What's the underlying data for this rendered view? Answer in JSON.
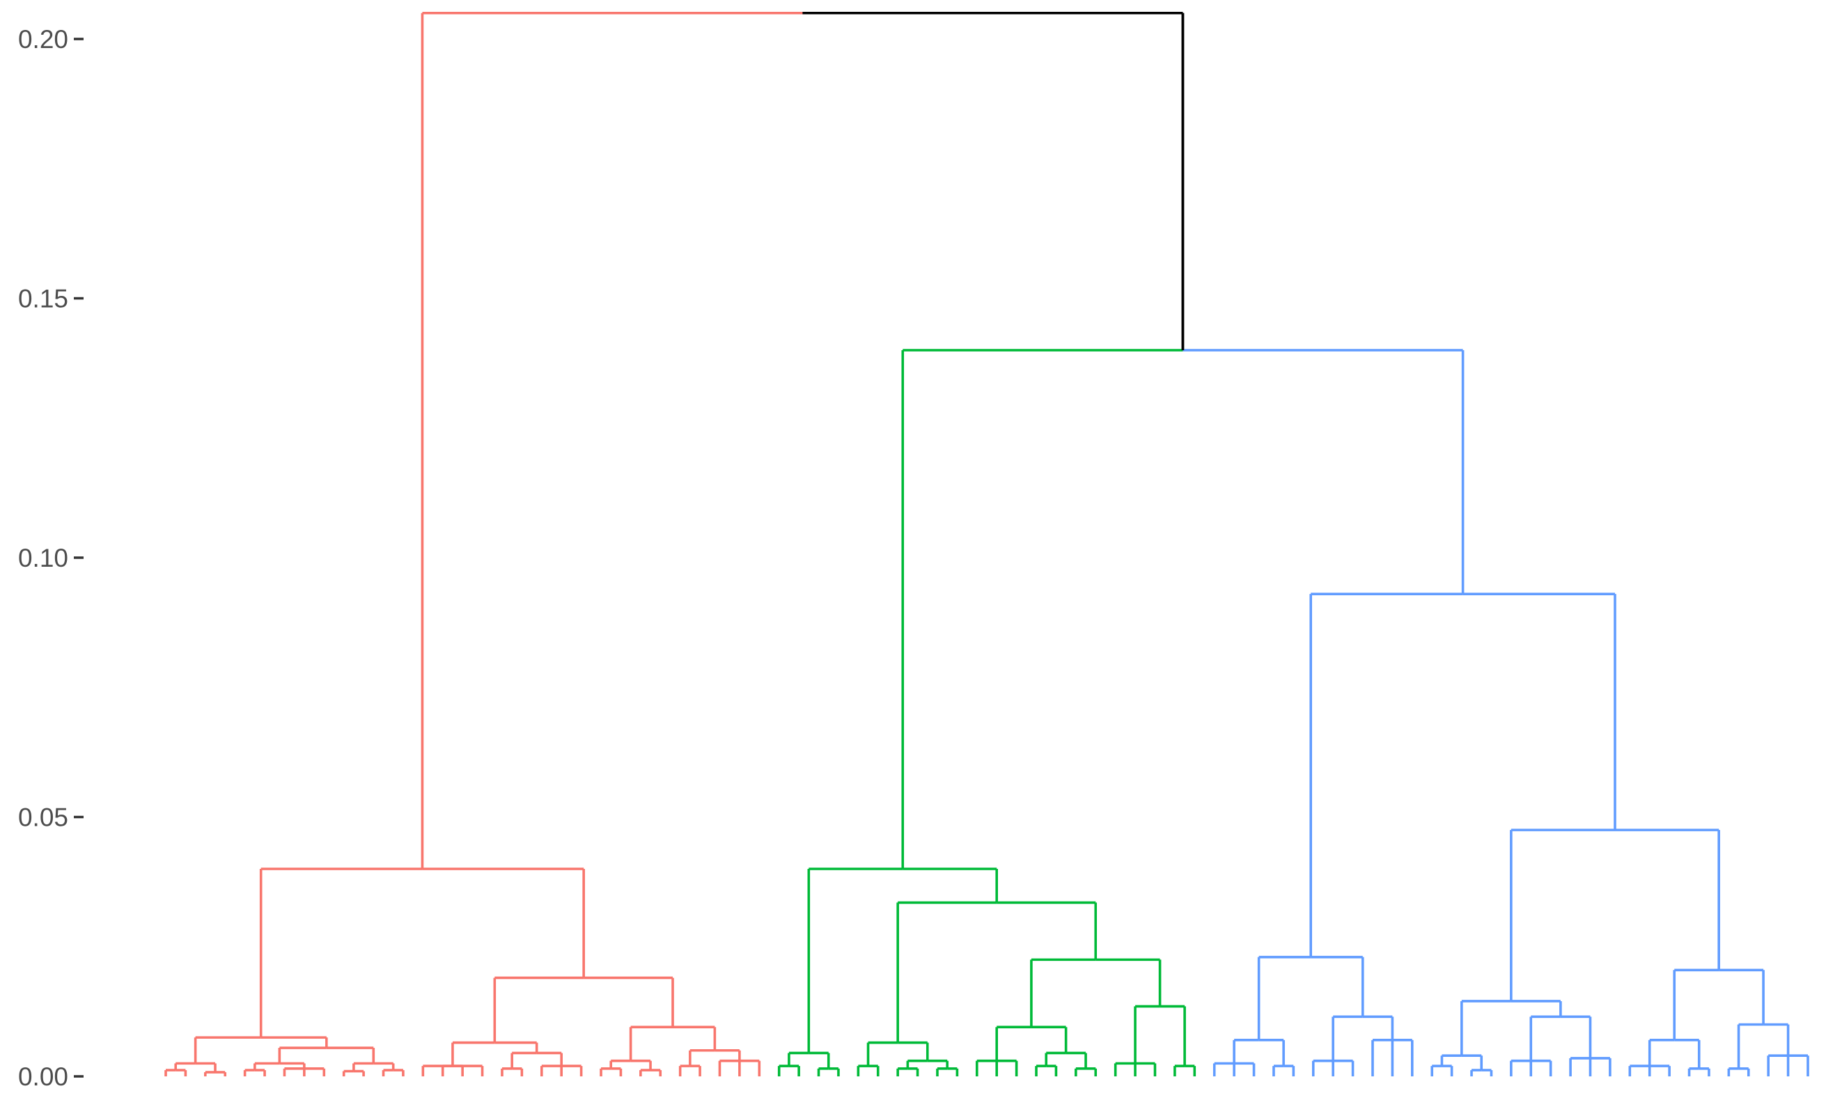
{
  "chart_data": {
    "type": "dendrogram",
    "title": "",
    "xlabel": "",
    "ylabel": "",
    "ylim": [
      0,
      0.205
    ],
    "y_ticks": [
      0.0,
      0.05,
      0.1,
      0.15,
      0.2
    ],
    "y_tick_labels": [
      "0.00",
      "0.05",
      "0.10",
      "0.15",
      "0.20"
    ],
    "grid": false,
    "leaf_labels_shown": false,
    "colors": {
      "root": "#000000",
      "clusters": [
        "#F8766D",
        "#00BA38",
        "#619CFF"
      ]
    },
    "merge_heights": {
      "root": 0.205,
      "green_blue": 0.14,
      "red_cluster": 0.04,
      "green_cluster": 0.04,
      "blue_cluster": 0.093
    },
    "tree": {
      "h": 0.205,
      "children": [
        {
          "cluster": 0,
          "h": 0.04,
          "children": [
            {
              "h": 0.0075,
              "children": [
                {
                  "h": 0.0025,
                  "children": [
                    {
                      "h": 0.0012,
                      "children": [
                        {},
                        {}
                      ]
                    },
                    {
                      "h": 0.0008,
                      "children": [
                        {},
                        {}
                      ]
                    }
                  ]
                },
                {
                  "h": 0.0055,
                  "children": [
                    {
                      "h": 0.0025,
                      "children": [
                        {
                          "h": 0.0012,
                          "children": [
                            {},
                            {}
                          ]
                        },
                        {
                          "h": 0.0015,
                          "children": [
                            {},
                            {},
                            {}
                          ]
                        }
                      ]
                    },
                    {
                      "h": 0.0025,
                      "children": [
                        {
                          "h": 0.001,
                          "children": [
                            {},
                            {}
                          ]
                        },
                        {
                          "h": 0.0012,
                          "children": [
                            {},
                            {}
                          ]
                        }
                      ]
                    }
                  ]
                }
              ]
            },
            {
              "h": 0.019,
              "children": [
                {
                  "h": 0.0065,
                  "children": [
                    {
                      "h": 0.002,
                      "children": [
                        {},
                        {},
                        {},
                        {}
                      ]
                    },
                    {
                      "h": 0.0045,
                      "children": [
                        {
                          "h": 0.0015,
                          "children": [
                            {},
                            {}
                          ]
                        },
                        {
                          "h": 0.002,
                          "children": [
                            {},
                            {},
                            {}
                          ]
                        }
                      ]
                    }
                  ]
                },
                {
                  "h": 0.0095,
                  "children": [
                    {
                      "h": 0.003,
                      "children": [
                        {
                          "h": 0.0015,
                          "children": [
                            {},
                            {}
                          ]
                        },
                        {
                          "h": 0.0012,
                          "children": [
                            {},
                            {}
                          ]
                        }
                      ]
                    },
                    {
                      "h": 0.005,
                      "children": [
                        {
                          "h": 0.002,
                          "children": [
                            {},
                            {}
                          ]
                        },
                        {
                          "h": 0.003,
                          "children": [
                            {},
                            {},
                            {}
                          ]
                        }
                      ]
                    }
                  ]
                }
              ]
            }
          ]
        },
        {
          "h": 0.14,
          "children": [
            {
              "cluster": 1,
              "h": 0.04,
              "children": [
                {
                  "h": 0.0045,
                  "children": [
                    {
                      "h": 0.002,
                      "children": [
                        {},
                        {}
                      ]
                    },
                    {
                      "h": 0.0015,
                      "children": [
                        {},
                        {}
                      ]
                    }
                  ]
                },
                {
                  "h": 0.0335,
                  "children": [
                    {
                      "h": 0.0065,
                      "children": [
                        {
                          "h": 0.002,
                          "children": [
                            {},
                            {}
                          ]
                        },
                        {
                          "h": 0.003,
                          "children": [
                            {
                              "h": 0.0015,
                              "children": [
                                {},
                                {}
                              ]
                            },
                            {
                              "h": 0.0015,
                              "children": [
                                {},
                                {}
                              ]
                            }
                          ]
                        }
                      ]
                    },
                    {
                      "h": 0.0225,
                      "children": [
                        {
                          "h": 0.0095,
                          "children": [
                            {
                              "h": 0.003,
                              "children": [
                                {},
                                {},
                                {}
                              ]
                            },
                            {
                              "h": 0.0045,
                              "children": [
                                {
                                  "h": 0.002,
                                  "children": [
                                    {},
                                    {}
                                  ]
                                },
                                {
                                  "h": 0.0015,
                                  "children": [
                                    {},
                                    {}
                                  ]
                                }
                              ]
                            }
                          ]
                        },
                        {
                          "h": 0.0135,
                          "children": [
                            {
                              "h": 0.0025,
                              "children": [
                                {},
                                {},
                                {}
                              ]
                            },
                            {
                              "h": 0.002,
                              "children": [
                                {},
                                {}
                              ]
                            }
                          ]
                        }
                      ]
                    }
                  ]
                }
              ]
            },
            {
              "cluster": 2,
              "h": 0.093,
              "children": [
                {
                  "h": 0.023,
                  "children": [
                    {
                      "h": 0.007,
                      "children": [
                        {
                          "h": 0.0025,
                          "children": [
                            {},
                            {},
                            {}
                          ]
                        },
                        {
                          "h": 0.002,
                          "children": [
                            {},
                            {}
                          ]
                        }
                      ]
                    },
                    {
                      "h": 0.0115,
                      "children": [
                        {
                          "h": 0.003,
                          "children": [
                            {},
                            {},
                            {}
                          ]
                        },
                        {
                          "h": 0.007,
                          "children": [
                            {},
                            {},
                            {}
                          ]
                        }
                      ]
                    }
                  ]
                },
                {
                  "h": 0.0475,
                  "children": [
                    {
                      "h": 0.0145,
                      "children": [
                        {
                          "h": 0.004,
                          "children": [
                            {
                              "h": 0.002,
                              "children": [
                                {},
                                {}
                              ]
                            },
                            {
                              "h": 0.0012,
                              "children": [
                                {},
                                {}
                              ]
                            }
                          ]
                        },
                        {
                          "h": 0.0115,
                          "children": [
                            {
                              "h": 0.003,
                              "children": [
                                {},
                                {},
                                {}
                              ]
                            },
                            {
                              "h": 0.0035,
                              "children": [
                                {},
                                {},
                                {}
                              ]
                            }
                          ]
                        }
                      ]
                    },
                    {
                      "h": 0.0205,
                      "children": [
                        {
                          "h": 0.007,
                          "children": [
                            {
                              "h": 0.002,
                              "children": [
                                {},
                                {},
                                {}
                              ]
                            },
                            {
                              "h": 0.0015,
                              "children": [
                                {},
                                {}
                              ]
                            }
                          ]
                        },
                        {
                          "h": 0.01,
                          "children": [
                            {
                              "h": 0.0015,
                              "children": [
                                {},
                                {}
                              ]
                            },
                            {
                              "h": 0.004,
                              "children": [
                                {},
                                {},
                                {}
                              ]
                            }
                          ]
                        }
                      ]
                    }
                  ]
                }
              ]
            }
          ]
        }
      ]
    }
  }
}
